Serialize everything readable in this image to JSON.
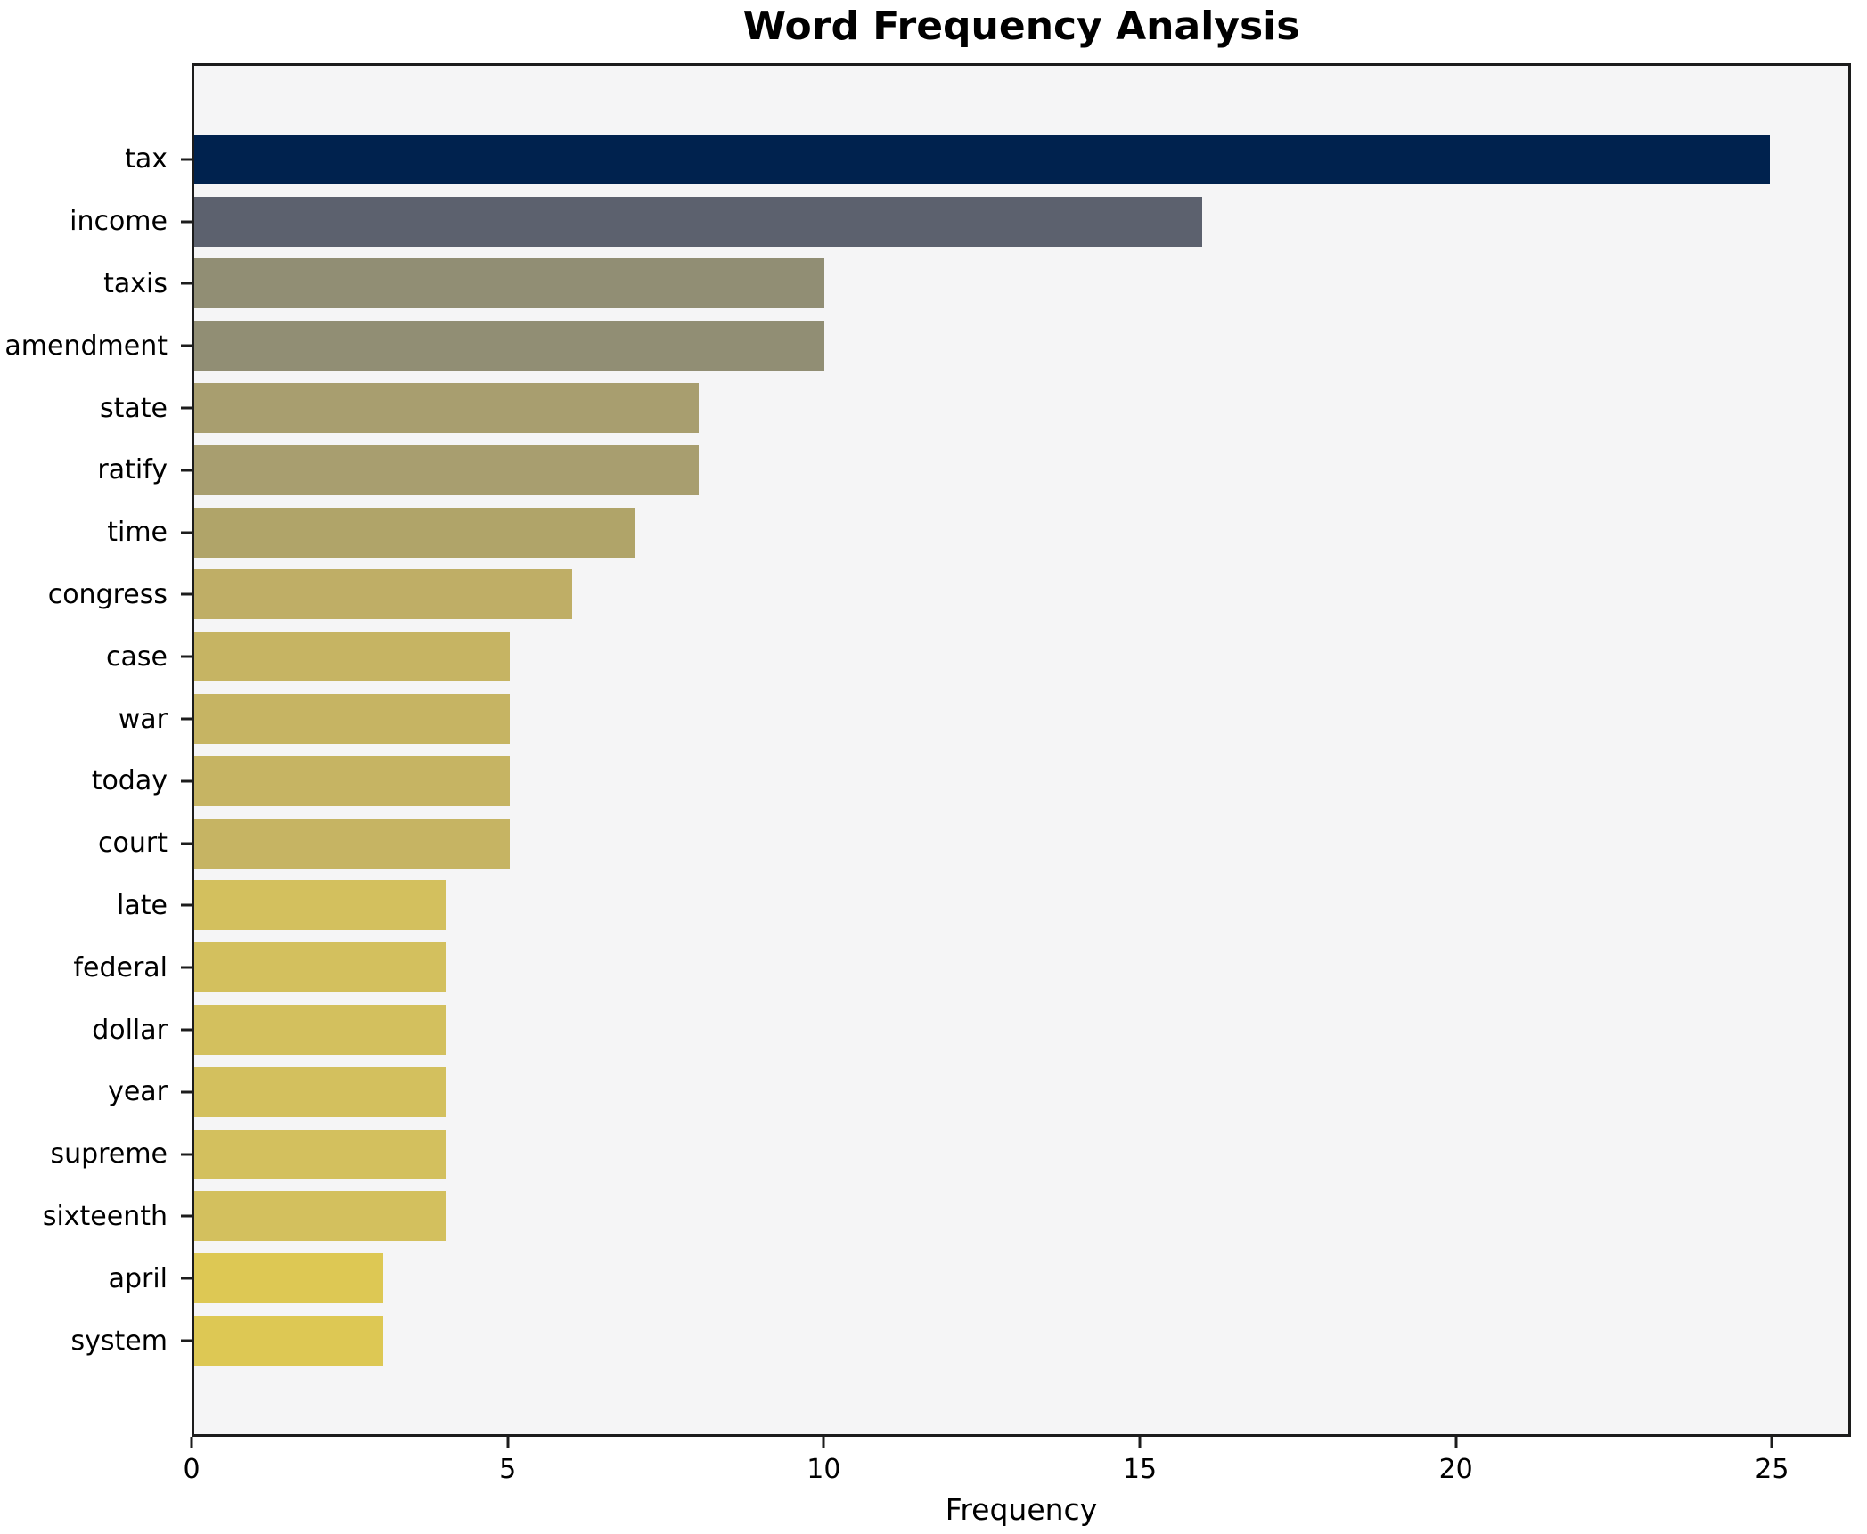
{
  "title": "Word Frequency Analysis",
  "chart_data": {
    "type": "bar",
    "orientation": "horizontal",
    "title": "Word Frequency Analysis",
    "xlabel": "Frequency",
    "ylabel": "",
    "categories": [
      "tax",
      "income",
      "taxis",
      "amendment",
      "state",
      "ratify",
      "time",
      "congress",
      "case",
      "war",
      "today",
      "court",
      "late",
      "federal",
      "dollar",
      "year",
      "supreme",
      "sixteenth",
      "april",
      "system"
    ],
    "values": [
      25,
      16,
      10,
      10,
      8,
      8,
      7,
      6,
      5,
      5,
      5,
      5,
      4,
      4,
      4,
      4,
      4,
      4,
      3,
      3
    ],
    "bar_colors": [
      "#00224e",
      "#5c616e",
      "#918e74",
      "#918e74",
      "#a89e6f",
      "#a89e6f",
      "#b0a469",
      "#bfae66",
      "#c6b463",
      "#c6b463",
      "#c6b463",
      "#c6b463",
      "#d3c05e",
      "#d3c05e",
      "#d3c05e",
      "#d3c05e",
      "#d3c05e",
      "#d3c05e",
      "#ddc854",
      "#ddc854"
    ],
    "xticks": [
      0,
      5,
      10,
      15,
      20,
      25
    ],
    "xlim": [
      0,
      26.25
    ],
    "grid": false,
    "legend": "none",
    "plot_background": "#f5f5f6",
    "figure_background": "#ffffff",
    "spine_color": "#1c1c1c",
    "bar_height_ratio": 0.8
  }
}
